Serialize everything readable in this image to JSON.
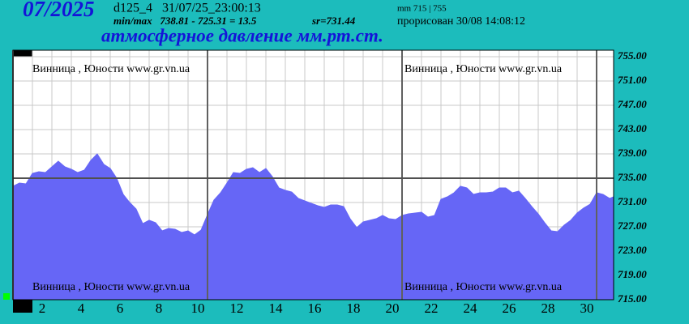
{
  "header": {
    "month": "07/2025",
    "station": "d125_4   31/07/25_23:00:13",
    "minmax": "min/max   738.81 - 725.31 = 13.5",
    "mean": "sr=731.44",
    "scale": "mm 715 | 755",
    "drawn": "прорисован 30/08 14:08:12"
  },
  "chart_data": {
    "type": "area",
    "title": "атмосферное давление мм.рт.ст.",
    "watermark": "Винница , Юности   www.gr.vn.ua",
    "color": "#6666f6",
    "grid": true,
    "reference_line": 735,
    "xlim": [
      1,
      31.875
    ],
    "ylim": [
      715,
      755
    ],
    "xticks": [
      {
        "value": 2.5,
        "label": "2"
      },
      {
        "value": 4.5,
        "label": "4"
      },
      {
        "value": 6.5,
        "label": "6"
      },
      {
        "value": 8.5,
        "label": "8"
      },
      {
        "value": 10.5,
        "label": "10"
      },
      {
        "value": 12.5,
        "label": "12"
      },
      {
        "value": 14.5,
        "label": "14"
      },
      {
        "value": 16.5,
        "label": "16"
      },
      {
        "value": 18.5,
        "label": "18"
      },
      {
        "value": 20.5,
        "label": "20"
      },
      {
        "value": 22.5,
        "label": "22"
      },
      {
        "value": 24.5,
        "label": "24"
      },
      {
        "value": 26.5,
        "label": "26"
      },
      {
        "value": 28.5,
        "label": "28"
      },
      {
        "value": 30.5,
        "label": "30"
      }
    ],
    "yticks": [
      {
        "value": 755,
        "label": "755.00"
      },
      {
        "value": 751,
        "label": "751.00"
      },
      {
        "value": 747,
        "label": "747.00"
      },
      {
        "value": 743,
        "label": "743.00"
      },
      {
        "value": 739,
        "label": "739.00"
      },
      {
        "value": 735,
        "label": "735.00"
      },
      {
        "value": 731,
        "label": "731.00"
      },
      {
        "value": 727,
        "label": "727.00"
      },
      {
        "value": 723,
        "label": "723.00"
      },
      {
        "value": 719,
        "label": "719.00"
      },
      {
        "value": 715,
        "label": "715.00"
      }
    ],
    "x": [
      1,
      1.33,
      1.67,
      2,
      2.33,
      2.67,
      3,
      3.33,
      3.67,
      4,
      4.33,
      4.67,
      5,
      5.33,
      5.67,
      6,
      6.33,
      6.67,
      7,
      7.33,
      7.67,
      8,
      8.33,
      8.67,
      9,
      9.33,
      9.67,
      10,
      10.33,
      10.67,
      11,
      11.33,
      11.67,
      12,
      12.33,
      12.67,
      13,
      13.33,
      13.67,
      14,
      14.33,
      14.67,
      15,
      15.33,
      15.67,
      16,
      16.33,
      16.67,
      17,
      17.33,
      17.67,
      18,
      18.33,
      18.67,
      19,
      19.33,
      19.67,
      20,
      20.33,
      20.67,
      21,
      21.33,
      21.67,
      22,
      22.33,
      22.67,
      23,
      23.33,
      23.67,
      24,
      24.33,
      24.67,
      25,
      25.33,
      25.67,
      26,
      26.33,
      26.67,
      27,
      27.33,
      27.67,
      28,
      28.33,
      28.67,
      29,
      29.33,
      29.67,
      30,
      30.33,
      30.67,
      31,
      31.33,
      31.67,
      31.87
    ],
    "values": [
      733.67,
      734.2,
      734.07,
      735.8,
      736.07,
      735.93,
      736.87,
      737.8,
      736.87,
      736.47,
      735.93,
      736.33,
      737.93,
      739,
      737.27,
      736.6,
      735,
      732.33,
      731,
      729.93,
      727.53,
      728.07,
      727.67,
      726.33,
      726.73,
      726.6,
      726.07,
      726.33,
      725.67,
      726.47,
      729,
      731.4,
      732.6,
      734.2,
      735.93,
      735.8,
      736.47,
      736.73,
      735.93,
      736.6,
      735.27,
      733.4,
      733,
      732.73,
      731.67,
      731.27,
      730.87,
      730.47,
      730.2,
      730.6,
      730.6,
      730.33,
      728.33,
      726.87,
      727.8,
      728.07,
      728.33,
      728.87,
      728.33,
      728.2,
      728.87,
      729.13,
      729.27,
      729.4,
      728.6,
      728.87,
      731.53,
      731.93,
      732.6,
      733.67,
      733.4,
      732.33,
      732.6,
      732.6,
      732.73,
      733.4,
      733.4,
      732.6,
      732.87,
      731.67,
      730.33,
      729.13,
      727.67,
      726.33,
      726.2,
      727.27,
      728.07,
      729.27,
      730.07,
      730.73,
      732.6,
      732.33,
      731.67,
      731.93
    ]
  }
}
